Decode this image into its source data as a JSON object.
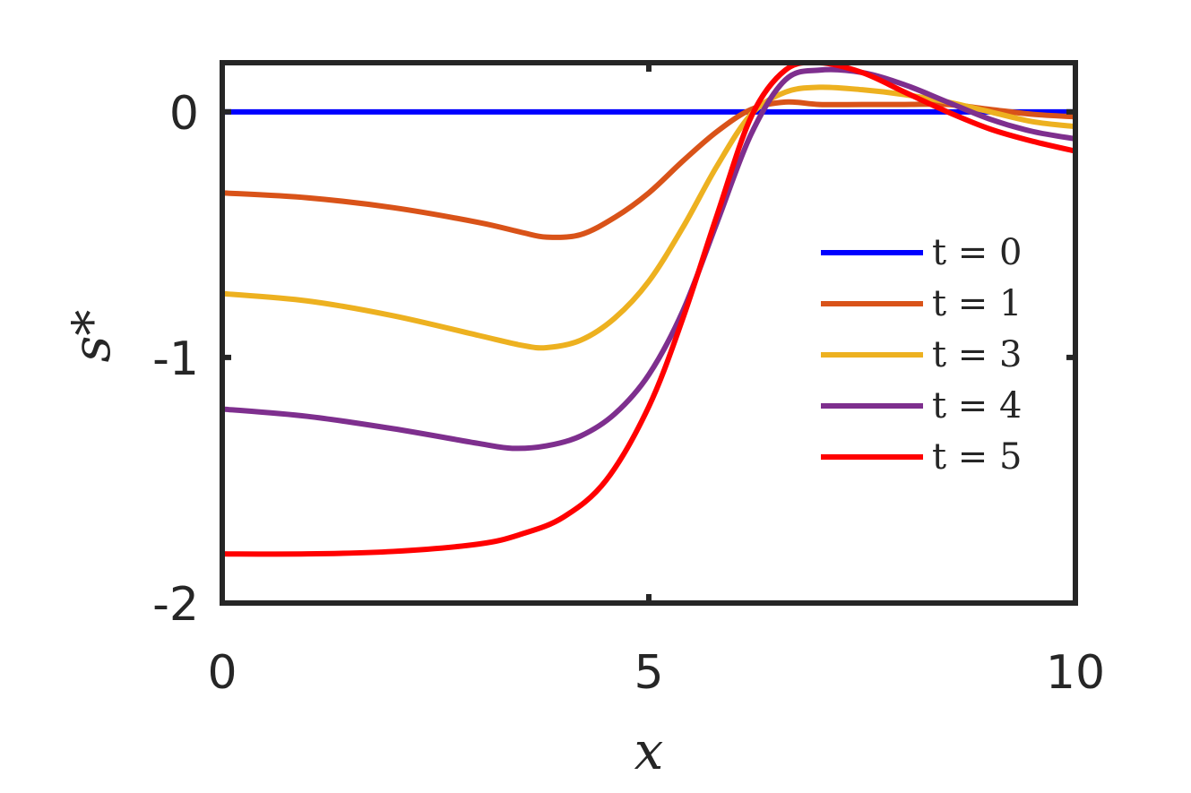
{
  "chart_data": {
    "type": "line",
    "xlabel": "x",
    "ylabel": "s*",
    "xlim": [
      0,
      10
    ],
    "ylim": [
      -2,
      0.2
    ],
    "xticks": [
      0,
      5,
      10
    ],
    "yticks": [
      0,
      -1,
      -2
    ],
    "xtick_labels": [
      "0",
      "5",
      "10"
    ],
    "ytick_labels": [
      "0",
      "-1",
      "-2"
    ],
    "grid": false,
    "legend_position": "center-right",
    "series": [
      {
        "name": "t = 0",
        "color": "#0000ff",
        "x": [
          0,
          10
        ],
        "y": [
          0,
          0
        ]
      },
      {
        "name": "t = 1",
        "color": "#d95319",
        "x": [
          0,
          1,
          2,
          3,
          3.5,
          3.8,
          4.2,
          4.6,
          5.0,
          5.4,
          5.8,
          6.2,
          6.6,
          7.0,
          7.5,
          8.0,
          8.5,
          9.0,
          9.5,
          10
        ],
        "y": [
          -0.33,
          -0.35,
          -0.39,
          -0.45,
          -0.49,
          -0.51,
          -0.5,
          -0.43,
          -0.33,
          -0.2,
          -0.08,
          0.01,
          0.04,
          0.03,
          0.03,
          0.03,
          0.03,
          0.01,
          -0.01,
          -0.02
        ]
      },
      {
        "name": "t = 3",
        "color": "#edb120",
        "x": [
          0,
          1,
          2,
          3,
          3.5,
          3.8,
          4.2,
          4.6,
          5.0,
          5.4,
          5.8,
          6.2,
          6.6,
          7.0,
          7.5,
          8.0,
          8.5,
          9.0,
          9.5,
          10
        ],
        "y": [
          -0.74,
          -0.77,
          -0.83,
          -0.91,
          -0.95,
          -0.96,
          -0.93,
          -0.84,
          -0.69,
          -0.47,
          -0.22,
          -0.01,
          0.08,
          0.1,
          0.09,
          0.07,
          0.04,
          0.0,
          -0.04,
          -0.06
        ]
      },
      {
        "name": "t = 4",
        "color": "#7e2f8e",
        "x": [
          0,
          1,
          2,
          3,
          3.4,
          3.8,
          4.2,
          4.6,
          5.0,
          5.4,
          5.8,
          6.2,
          6.6,
          7.0,
          7.5,
          8.0,
          8.5,
          9.0,
          9.5,
          10
        ],
        "y": [
          -1.21,
          -1.24,
          -1.29,
          -1.35,
          -1.37,
          -1.36,
          -1.32,
          -1.23,
          -1.07,
          -0.81,
          -0.45,
          -0.09,
          0.13,
          0.17,
          0.16,
          0.11,
          0.04,
          -0.03,
          -0.08,
          -0.11
        ]
      },
      {
        "name": "t = 5",
        "color": "#ff0000",
        "x": [
          0,
          1,
          2,
          3,
          3.5,
          4.0,
          4.5,
          5.0,
          5.4,
          5.8,
          6.2,
          6.6,
          7.0,
          7.5,
          8.0,
          8.5,
          9.0,
          9.5,
          10
        ],
        "y": [
          -1.8,
          -1.8,
          -1.79,
          -1.76,
          -1.72,
          -1.65,
          -1.5,
          -1.2,
          -0.84,
          -0.42,
          -0.02,
          0.17,
          0.2,
          0.16,
          0.08,
          0.0,
          -0.07,
          -0.12,
          -0.16
        ]
      }
    ]
  }
}
